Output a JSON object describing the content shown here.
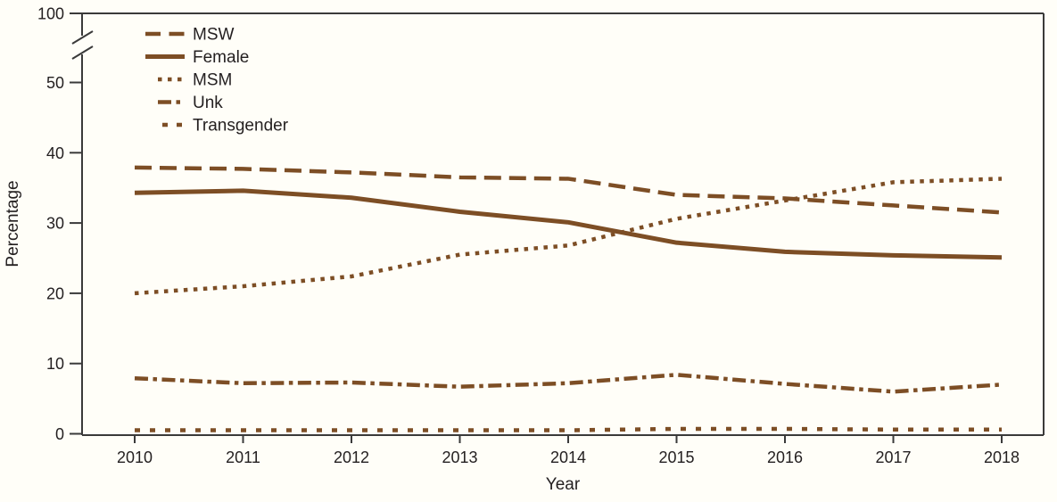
{
  "figure": {
    "background_color": "#fffef8",
    "line_color": "#7d4e25",
    "axis_color": "#3a3a3a",
    "text_color": "#231f20"
  },
  "chart_data": {
    "type": "line",
    "title": "",
    "xlabel": "Year",
    "ylabel": "Percentage",
    "x": [
      2010,
      2011,
      2012,
      2013,
      2014,
      2015,
      2016,
      2017,
      2018
    ],
    "x_tick_labels": [
      "2010",
      "2011",
      "2012",
      "2013",
      "2014",
      "2015",
      "2016",
      "2017",
      "2018"
    ],
    "y_ticks": [
      0,
      10,
      20,
      30,
      40,
      50,
      100
    ],
    "ylim": [
      0,
      100
    ],
    "y_axis_break": {
      "present": true,
      "between": [
        50,
        100
      ]
    },
    "grid": false,
    "legend_position": "top-left-inside",
    "series": [
      {
        "name": "MSW",
        "line_style": "dashed",
        "values": [
          37.9,
          37.7,
          37.2,
          36.5,
          36.3,
          34.0,
          33.5,
          32.5,
          31.5
        ]
      },
      {
        "name": "Female",
        "line_style": "solid",
        "values": [
          34.3,
          34.6,
          33.6,
          31.6,
          30.1,
          27.2,
          25.9,
          25.4,
          25.1
        ]
      },
      {
        "name": "MSM",
        "line_style": "dotted",
        "values": [
          20.0,
          21.0,
          22.4,
          25.5,
          26.8,
          30.6,
          33.2,
          35.8,
          36.3
        ]
      },
      {
        "name": "Unk",
        "line_style": "dash-dot",
        "values": [
          7.9,
          7.2,
          7.3,
          6.7,
          7.2,
          8.4,
          7.1,
          6.0,
          7.0
        ]
      },
      {
        "name": "Transgender",
        "line_style": "square-dash",
        "values": [
          0.5,
          0.5,
          0.5,
          0.5,
          0.5,
          0.7,
          0.7,
          0.6,
          0.6
        ]
      }
    ]
  }
}
